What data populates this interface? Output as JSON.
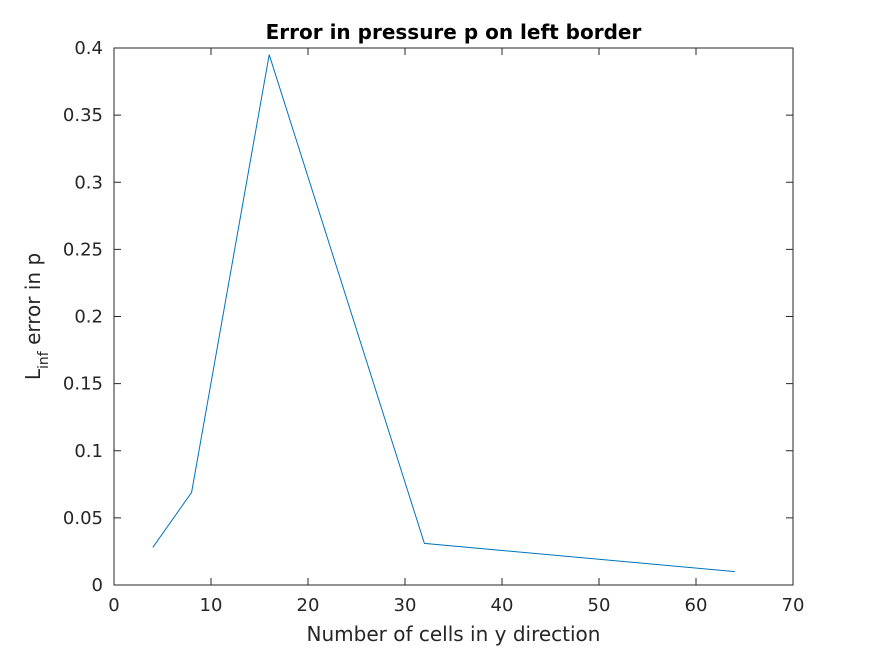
{
  "chart_data": {
    "type": "line",
    "title": "Error in pressure p on left border",
    "xlabel": "Number of cells in y direction",
    "ylabel": {
      "main": "L",
      "subscript": "inf",
      "rest": " error in p"
    },
    "xlim": [
      0,
      70
    ],
    "ylim": [
      0,
      0.4
    ],
    "xticks": [
      0,
      10,
      20,
      30,
      40,
      50,
      60,
      70
    ],
    "xtick_labels": [
      "0",
      "10",
      "20",
      "30",
      "40",
      "50",
      "60",
      "70"
    ],
    "yticks": [
      0,
      0.05,
      0.1,
      0.15,
      0.2,
      0.25,
      0.3,
      0.35,
      0.4
    ],
    "ytick_labels": [
      "0",
      "0.05",
      "0.1",
      "0.15",
      "0.2",
      "0.25",
      "0.3",
      "0.35",
      "0.4"
    ],
    "grid": false,
    "box": true,
    "series": [
      {
        "color": "#0072BD",
        "x": [
          4,
          8,
          16,
          32,
          64
        ],
        "y": [
          0.028,
          0.069,
          0.395,
          0.031,
          0.01
        ]
      }
    ]
  }
}
